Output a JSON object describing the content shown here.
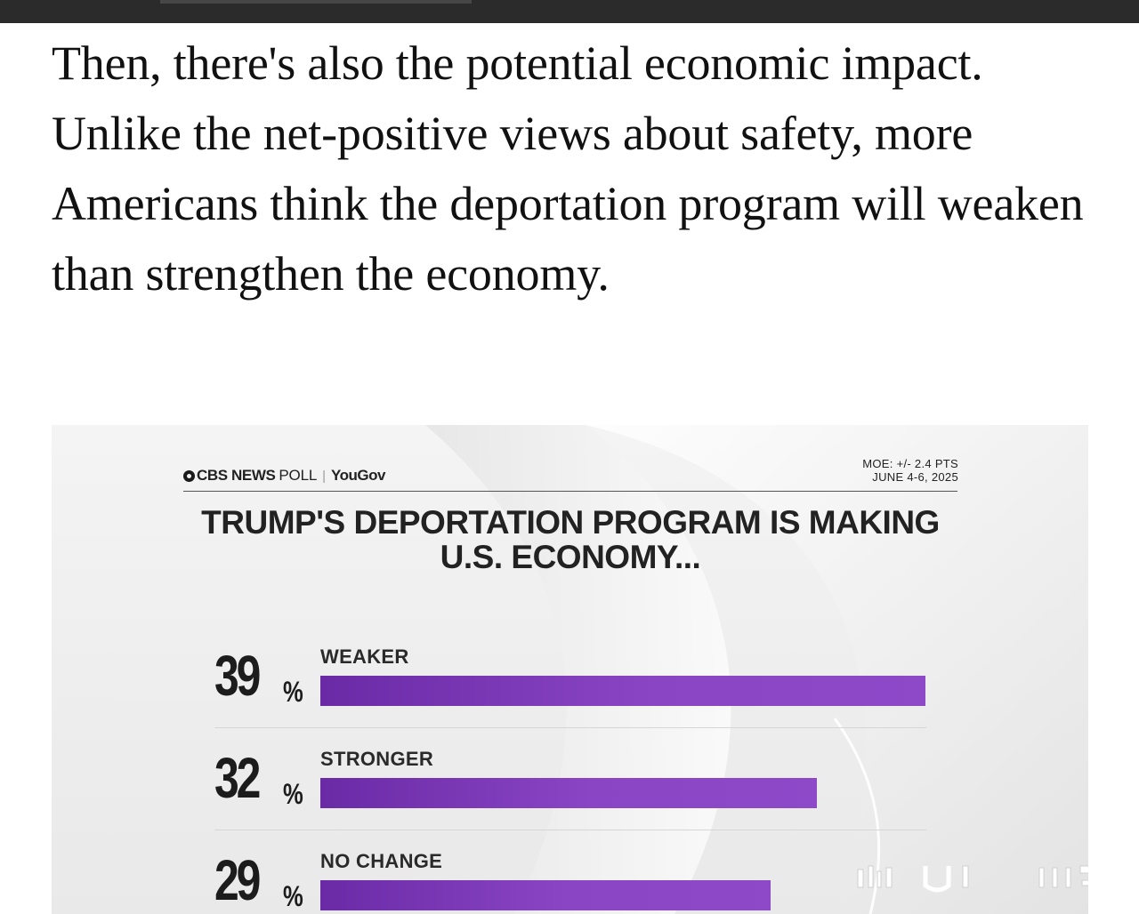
{
  "article": {
    "paragraph": "Then, there's also the potential economic impact. Unlike the net-positive views about safety, more Americans think the deportation program will weaken than strengthen the economy."
  },
  "graphic": {
    "brand_cbs": "CBS NEWS",
    "brand_poll": "POLL",
    "brand_separator": "|",
    "brand_partner": "YouGov",
    "moe_line": "MOE: +/- 2.4 PTS",
    "date_line": "JUNE 4-6, 2025",
    "headline": "TRUMP'S DEPORTATION PROGRAM IS MAKING U.S. ECONOMY...",
    "accent_color": "#8a45c4"
  },
  "chart_data": {
    "type": "bar",
    "title": "TRUMP'S DEPORTATION PROGRAM IS MAKING U.S. ECONOMY...",
    "categories": [
      "WEAKER",
      "STRONGER",
      "NO CHANGE"
    ],
    "values": [
      39,
      32,
      29
    ],
    "value_labels": [
      "39",
      "32",
      "29"
    ],
    "unit": "%",
    "orientation": "horizontal",
    "xlim": [
      0,
      39
    ]
  }
}
